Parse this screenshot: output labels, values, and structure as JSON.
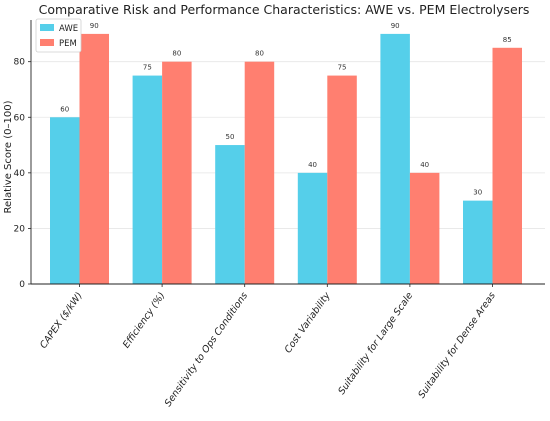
{
  "chart_data": {
    "type": "bar",
    "title": "Comparative Risk and Performance Characteristics: AWE vs. PEM Electrolysers",
    "xlabel": "",
    "ylabel": "Relative Score (0–100)",
    "ylim": [
      0,
      95
    ],
    "yticks": [
      0,
      20,
      40,
      60,
      80
    ],
    "grid": true,
    "legend_position": "top-left",
    "categories": [
      "CAPEX ($/kW)",
      "Efficiency (%)",
      "Sensitivity to Ops Conditions",
      "Cost Variability",
      "Suitability for Large Scale",
      "Suitability for Dense Areas"
    ],
    "series": [
      {
        "name": "AWE",
        "color": "#55cfea",
        "values": [
          60,
          75,
          50,
          40,
          90,
          30
        ]
      },
      {
        "name": "PEM",
        "color": "#ff7f70",
        "values": [
          90,
          80,
          80,
          75,
          40,
          85
        ]
      }
    ]
  }
}
